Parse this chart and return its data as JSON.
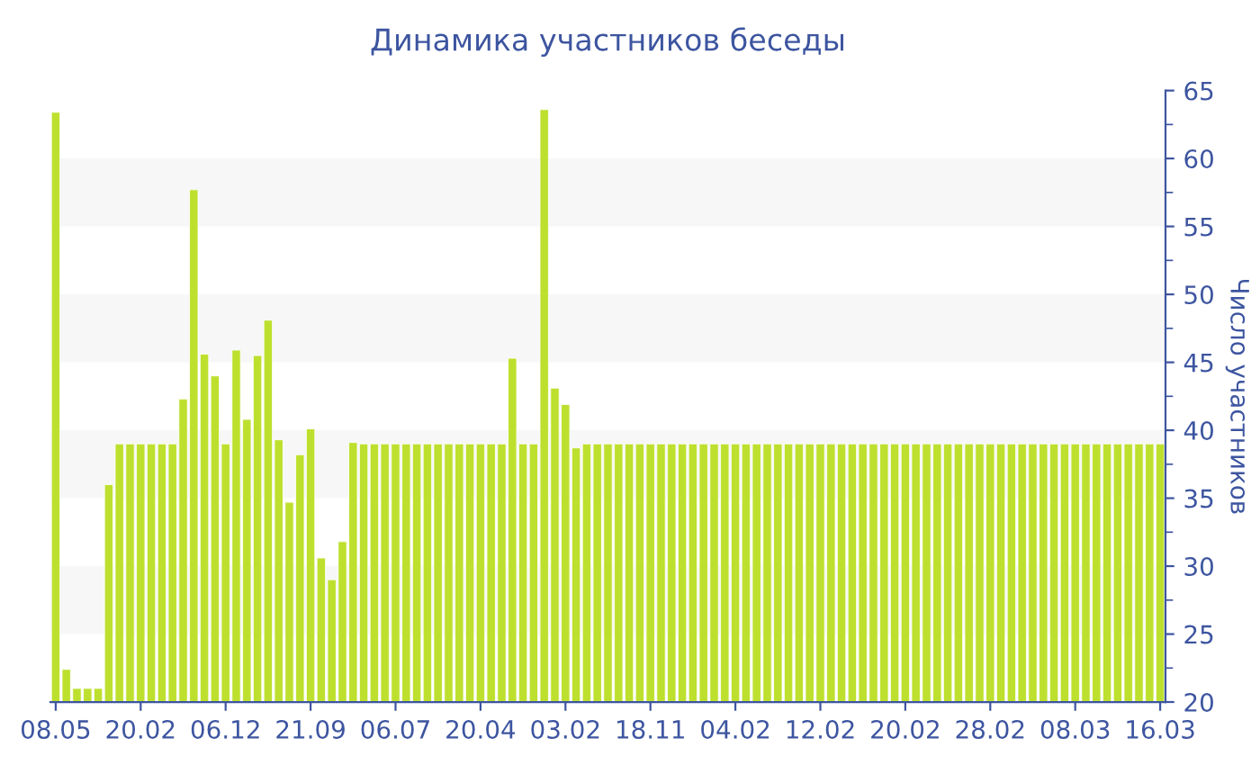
{
  "chart_data": {
    "type": "bar",
    "title": "Динамика участников беседы",
    "ylabel": "Число участников",
    "categories": [
      "08.05",
      null,
      null,
      null,
      null,
      null,
      null,
      null,
      "20.02",
      null,
      null,
      null,
      null,
      null,
      null,
      null,
      "06.12",
      null,
      null,
      null,
      null,
      null,
      null,
      null,
      "21.09",
      null,
      null,
      null,
      null,
      null,
      null,
      null,
      "06.07",
      null,
      null,
      null,
      null,
      null,
      null,
      null,
      "20.04",
      null,
      null,
      null,
      null,
      null,
      null,
      null,
      "03.02",
      null,
      null,
      null,
      null,
      null,
      null,
      null,
      "18.11",
      null,
      null,
      null,
      null,
      null,
      null,
      null,
      "04.02",
      null,
      null,
      null,
      null,
      null,
      null,
      null,
      "12.02",
      null,
      null,
      null,
      null,
      null,
      null,
      null,
      "20.02",
      null,
      null,
      null,
      null,
      null,
      null,
      null,
      "28.02",
      null,
      null,
      null,
      null,
      null,
      null,
      null,
      "08.03",
      null,
      null,
      null,
      null,
      null,
      null,
      null,
      "16.03"
    ],
    "values": [
      63.4,
      22.4,
      21,
      21,
      21,
      36,
      39,
      39,
      39,
      39,
      39,
      39,
      42.3,
      57.7,
      45.6,
      44,
      39,
      45.9,
      40.8,
      45.5,
      48.1,
      39.3,
      34.7,
      38.2,
      40.1,
      30.6,
      29,
      31.8,
      39.1,
      39,
      39,
      39,
      39,
      39,
      39,
      39,
      39,
      39,
      39,
      39,
      39,
      39,
      39,
      45.3,
      39,
      39,
      63.6,
      43.1,
      41.9,
      38.7,
      39,
      39,
      39,
      39,
      39,
      39,
      39,
      39,
      39,
      39,
      39,
      39,
      39,
      39,
      39,
      39,
      39,
      39,
      39,
      39,
      39,
      39,
      39,
      39,
      39,
      39,
      39,
      39,
      39,
      39,
      39,
      39,
      39,
      39,
      39,
      39,
      39,
      39,
      39,
      39,
      39,
      39,
      39,
      39,
      39,
      39,
      39,
      39,
      39,
      39,
      39,
      39,
      39,
      39,
      39
    ],
    "color": "#bde02e",
    "ylim": [
      20,
      65
    ],
    "yticks": [
      20,
      25,
      30,
      35,
      40,
      45,
      50,
      55,
      60,
      65
    ],
    "grid": false,
    "legend": false,
    "bands": [
      {
        "axis": "y",
        "from": 25,
        "to": 30,
        "color": "#f7f7f7"
      },
      {
        "axis": "y",
        "from": 35,
        "to": 40,
        "color": "#f7f7f7"
      },
      {
        "axis": "y",
        "from": 45,
        "to": 50,
        "color": "#f7f7f7"
      },
      {
        "axis": "y",
        "from": 55,
        "to": 60,
        "color": "#f7f7f7"
      }
    ]
  }
}
